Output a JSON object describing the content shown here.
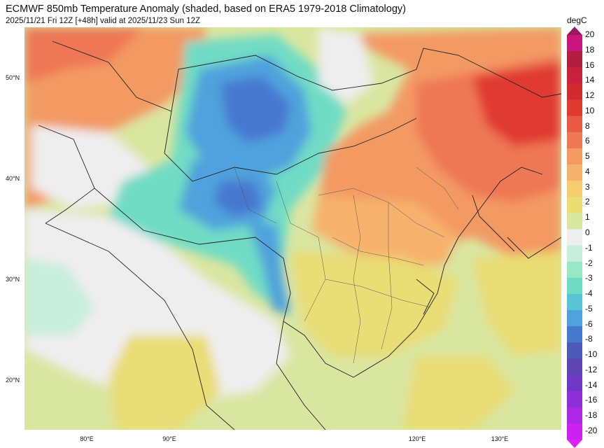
{
  "header": {
    "title": "ECMWF 850mb Temperature Anomaly (shaded, based on ERA5 1979-2018 Climatology)",
    "subtitle": "2025/11/21 Fri 12Z [+48h] valid at 2025/11/23 Sun 12Z"
  },
  "map": {
    "lat_labels": [
      "50°N",
      "40°N",
      "30°N",
      "20°N"
    ],
    "lon_labels": [
      "80°E",
      "90°E",
      "120°E",
      "130°E"
    ]
  },
  "colorbar": {
    "unit": "degC",
    "levels": [
      "20",
      "18",
      "16",
      "14",
      "12",
      "10",
      "8",
      "6",
      "5",
      "4",
      "3",
      "2",
      "1",
      "0",
      "-1",
      "-2",
      "-3",
      "-4",
      "-5",
      "-6",
      "-8",
      "-10",
      "-12",
      "-14",
      "-16",
      "-18",
      "-20"
    ],
    "colors": [
      "#c9167e",
      "#b21c40",
      "#c9203d",
      "#d22a30",
      "#e03a30",
      "#e95a45",
      "#ee7755",
      "#f39a63",
      "#f6b26c",
      "#f5cd6f",
      "#e9dd74",
      "#d9e6a0",
      "#eeeeee",
      "#c7eedc",
      "#96e8c6",
      "#71dcc4",
      "#5ac4d6",
      "#4fa2dc",
      "#4778cf",
      "#4f5ab8",
      "#5d45b3",
      "#7236c6",
      "#8f2fd8",
      "#ad28e6",
      "#cc21f0"
    ]
  }
}
